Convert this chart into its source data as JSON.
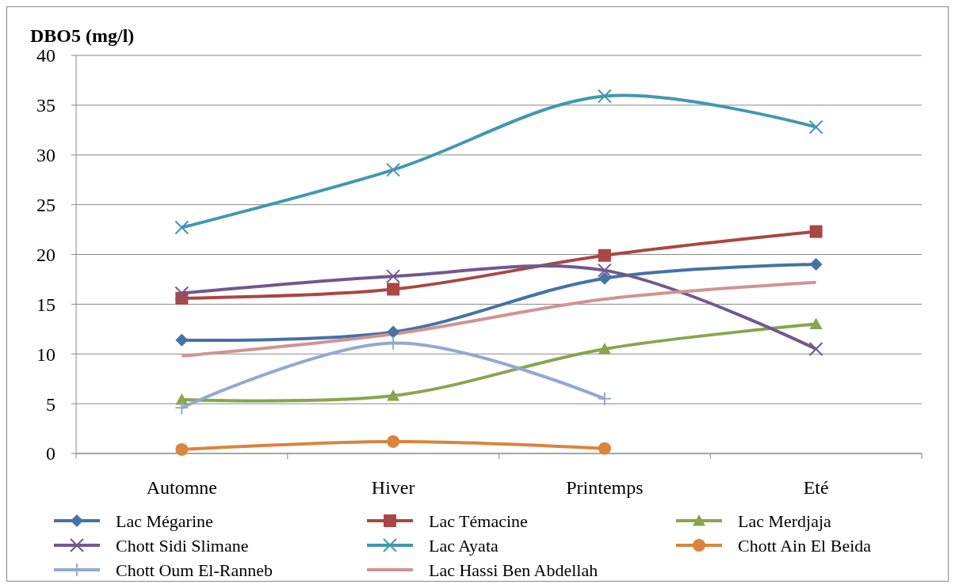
{
  "chart_data": {
    "type": "line",
    "ylabel": "DBO5 (mg/l)",
    "categories": [
      "Automne",
      "Hiver",
      "Printemps",
      "Eté"
    ],
    "ylim": [
      0,
      40
    ],
    "yticks": [
      0,
      5,
      10,
      15,
      20,
      25,
      30,
      35,
      40
    ],
    "grid": "y",
    "legend": "bottom",
    "line_style": "solid",
    "series": [
      {
        "name": "Lac Mégarine",
        "color": "#4572a7",
        "marker": "diamond",
        "values": [
          11.4,
          12.2,
          17.6,
          19.0
        ]
      },
      {
        "name": "Lac Témacine",
        "color": "#aa4643",
        "marker": "square",
        "values": [
          15.6,
          16.5,
          19.9,
          22.3
        ]
      },
      {
        "name": "Lac Merdjaja",
        "color": "#89a54e",
        "marker": "triangle",
        "values": [
          5.4,
          5.8,
          10.5,
          13.0
        ]
      },
      {
        "name": "Chott Sidi Slimane",
        "color": "#71588f",
        "marker": "cross",
        "values": [
          16.1,
          17.8,
          18.4,
          10.5
        ]
      },
      {
        "name": "Lac Ayata",
        "color": "#4198af",
        "marker": "cross",
        "values": [
          22.7,
          28.5,
          35.9,
          32.8
        ]
      },
      {
        "name": "Chott Ain El Beida",
        "color": "#db843d",
        "marker": "circle",
        "values": [
          0.4,
          1.2,
          0.5,
          null
        ]
      },
      {
        "name": "Chott Oum El-Ranneb",
        "color": "#93a9cf",
        "marker": "plus",
        "values": [
          4.6,
          11.1,
          5.5,
          null
        ]
      },
      {
        "name": "Lac Hassi Ben Abdellah",
        "color": "#d19392",
        "marker": "none",
        "values": [
          9.8,
          12.0,
          15.5,
          17.2
        ]
      }
    ]
  }
}
